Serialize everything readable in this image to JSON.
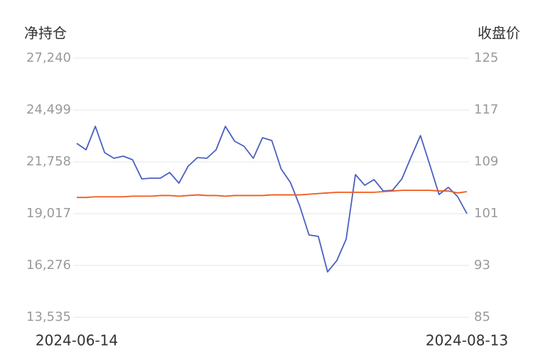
{
  "chart_data": {
    "type": "line",
    "ylabel": "净持仓",
    "y2label": "收盘价",
    "x": [
      "2024-06-14",
      null,
      null,
      null,
      null,
      null,
      null,
      null,
      null,
      null,
      null,
      null,
      null,
      null,
      null,
      null,
      null,
      null,
      null,
      null,
      null,
      null,
      null,
      null,
      null,
      null,
      null,
      null,
      null,
      null,
      null,
      null,
      null,
      null,
      null,
      null,
      null,
      null,
      null,
      null,
      null,
      null,
      "2024-08-13"
    ],
    "series": [
      {
        "color": "#4a5fc1",
        "axis": "y",
        "values": [
          22734,
          22396,
          23635,
          22246,
          21946,
          22058,
          21870,
          20857,
          20894,
          20894,
          21195,
          20631,
          21533,
          21983,
          21946,
          22396,
          23635,
          22847,
          22584,
          21946,
          23034,
          22884,
          21382,
          20669,
          19430,
          17890,
          17815,
          15937,
          16538,
          17665,
          21082,
          20519,
          20819,
          20218,
          20256,
          20857,
          22021,
          23147,
          21607,
          20030,
          20406,
          19918,
          19017
        ]
      },
      {
        "color": "#f05a1a",
        "axis": "y2",
        "values": [
          103.5,
          103.5,
          103.6,
          103.6,
          103.6,
          103.6,
          103.7,
          103.7,
          103.7,
          103.8,
          103.8,
          103.7,
          103.8,
          103.9,
          103.8,
          103.8,
          103.7,
          103.8,
          103.8,
          103.8,
          103.8,
          103.9,
          103.9,
          103.9,
          103.9,
          104.0,
          104.1,
          104.2,
          104.3,
          104.3,
          104.3,
          104.3,
          104.3,
          104.4,
          104.5,
          104.6,
          104.6,
          104.6,
          104.6,
          104.5,
          104.5,
          104.2,
          104.4
        ]
      }
    ],
    "ylim": [
      13535,
      27240
    ],
    "yticks": [
      {
        "value": 13535,
        "label": "13,535"
      },
      {
        "value": 16276,
        "label": "16,276"
      },
      {
        "value": 19017,
        "label": "19,017"
      },
      {
        "value": 21758,
        "label": "21,758"
      },
      {
        "value": 24499,
        "label": "24,499"
      },
      {
        "value": 27240,
        "label": "27,240"
      }
    ],
    "y2lim": [
      85,
      125
    ],
    "y2ticks": [
      85,
      93,
      101,
      109,
      117,
      125
    ],
    "grid": true
  }
}
